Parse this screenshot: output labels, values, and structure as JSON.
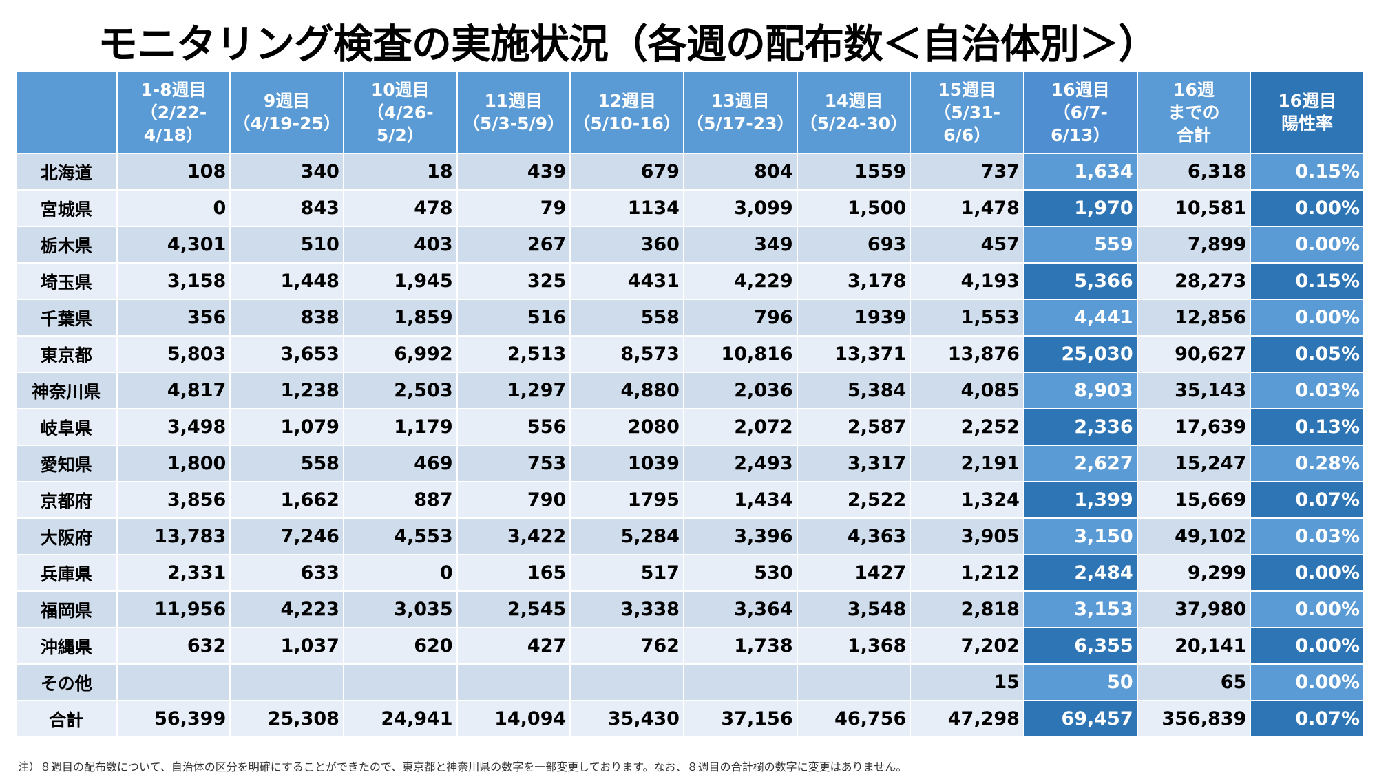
{
  "title": "モニタリング検査の実施状況（各週の配布数＜自治体別＞）",
  "columns": [
    {
      "lines": [
        ""
      ]
    },
    {
      "lines": [
        "1-8週目",
        "（2/22-",
        "4/18）"
      ]
    },
    {
      "lines": [
        "9週目",
        "（4/19-25）"
      ]
    },
    {
      "lines": [
        "10週目",
        "（4/26-",
        "5/2）"
      ]
    },
    {
      "lines": [
        "11週目",
        "（5/3-5/9）"
      ]
    },
    {
      "lines": [
        "12週目",
        "（5/10-16）"
      ]
    },
    {
      "lines": [
        "13週目",
        "（5/17-23）"
      ]
    },
    {
      "lines": [
        "14週目",
        "（5/24-30）"
      ]
    },
    {
      "lines": [
        "15週目",
        "（5/31-",
        "6/6）"
      ]
    },
    {
      "lines": [
        "16週目",
        "（6/7-",
        "6/13）"
      ]
    },
    {
      "lines": [
        "16週",
        "までの",
        "合計"
      ]
    },
    {
      "lines": [
        "16週目",
        "陽性率"
      ]
    }
  ],
  "rows": [
    [
      "北海道",
      "108",
      "340",
      "18",
      "439",
      "679",
      "804",
      "1559",
      "737",
      "1,634",
      "6,318",
      "0.15%"
    ],
    [
      "宮城県",
      "0",
      "843",
      "478",
      "79",
      "1134",
      "3,099",
      "1,500",
      "1,478",
      "1,970",
      "10,581",
      "0.00%"
    ],
    [
      "栃木県",
      "4,301",
      "510",
      "403",
      "267",
      "360",
      "349",
      "693",
      "457",
      "559",
      "7,899",
      "0.00%"
    ],
    [
      "埼玉県",
      "3,158",
      "1,448",
      "1,945",
      "325",
      "4431",
      "4,229",
      "3,178",
      "4,193",
      "5,366",
      "28,273",
      "0.15%"
    ],
    [
      "千葉県",
      "356",
      "838",
      "1,859",
      "516",
      "558",
      "796",
      "1939",
      "1,553",
      "4,441",
      "12,856",
      "0.00%"
    ],
    [
      "東京都",
      "5,803",
      "3,653",
      "6,992",
      "2,513",
      "8,573",
      "10,816",
      "13,371",
      "13,876",
      "25,030",
      "90,627",
      "0.05%"
    ],
    [
      "神奈川県",
      "4,817",
      "1,238",
      "2,503",
      "1,297",
      "4,880",
      "2,036",
      "5,384",
      "4,085",
      "8,903",
      "35,143",
      "0.03%"
    ],
    [
      "岐阜県",
      "3,498",
      "1,079",
      "1,179",
      "556",
      "2080",
      "2,072",
      "2,587",
      "2,252",
      "2,336",
      "17,639",
      "0.13%"
    ],
    [
      "愛知県",
      "1,800",
      "558",
      "469",
      "753",
      "1039",
      "2,493",
      "3,317",
      "2,191",
      "2,627",
      "15,247",
      "0.28%"
    ],
    [
      "京都府",
      "3,856",
      "1,662",
      "887",
      "790",
      "1795",
      "1,434",
      "2,522",
      "1,324",
      "1,399",
      "15,669",
      "0.07%"
    ],
    [
      "大阪府",
      "13,783",
      "7,246",
      "4,553",
      "3,422",
      "5,284",
      "3,396",
      "4,363",
      "3,905",
      "3,150",
      "49,102",
      "0.03%"
    ],
    [
      "兵庫県",
      "2,331",
      "633",
      "0",
      "165",
      "517",
      "530",
      "1427",
      "1,212",
      "2,484",
      "9,299",
      "0.00%"
    ],
    [
      "福岡県",
      "11,956",
      "4,223",
      "3,035",
      "2,545",
      "3,338",
      "3,364",
      "3,548",
      "2,818",
      "3,153",
      "37,980",
      "0.00%"
    ],
    [
      "沖縄県",
      "632",
      "1,037",
      "620",
      "427",
      "762",
      "1,738",
      "1,368",
      "7,202",
      "6,355",
      "20,141",
      "0.00%"
    ],
    [
      "その他",
      "",
      "",
      "",
      "",
      "",
      "",
      "",
      "15",
      "50",
      "65",
      "0.00%"
    ],
    [
      "合計",
      "56,399",
      "25,308",
      "24,941",
      "14,094",
      "35,430",
      "37,156",
      "46,756",
      "47,298",
      "69,457",
      "356,839",
      "0.07%"
    ]
  ],
  "note": "注）８週目の配布数について、自治体の区分を明確にすることができたので、東京都と神奈川県の数字を一部変更しております。なお、８週目の合計欄の数字に変更はありません。",
  "colors": {
    "header_blue": "#5b9bd5",
    "dark_blue": "#2e75b6",
    "row_light": "#e8eef7",
    "row_mid": "#cfdcec"
  }
}
